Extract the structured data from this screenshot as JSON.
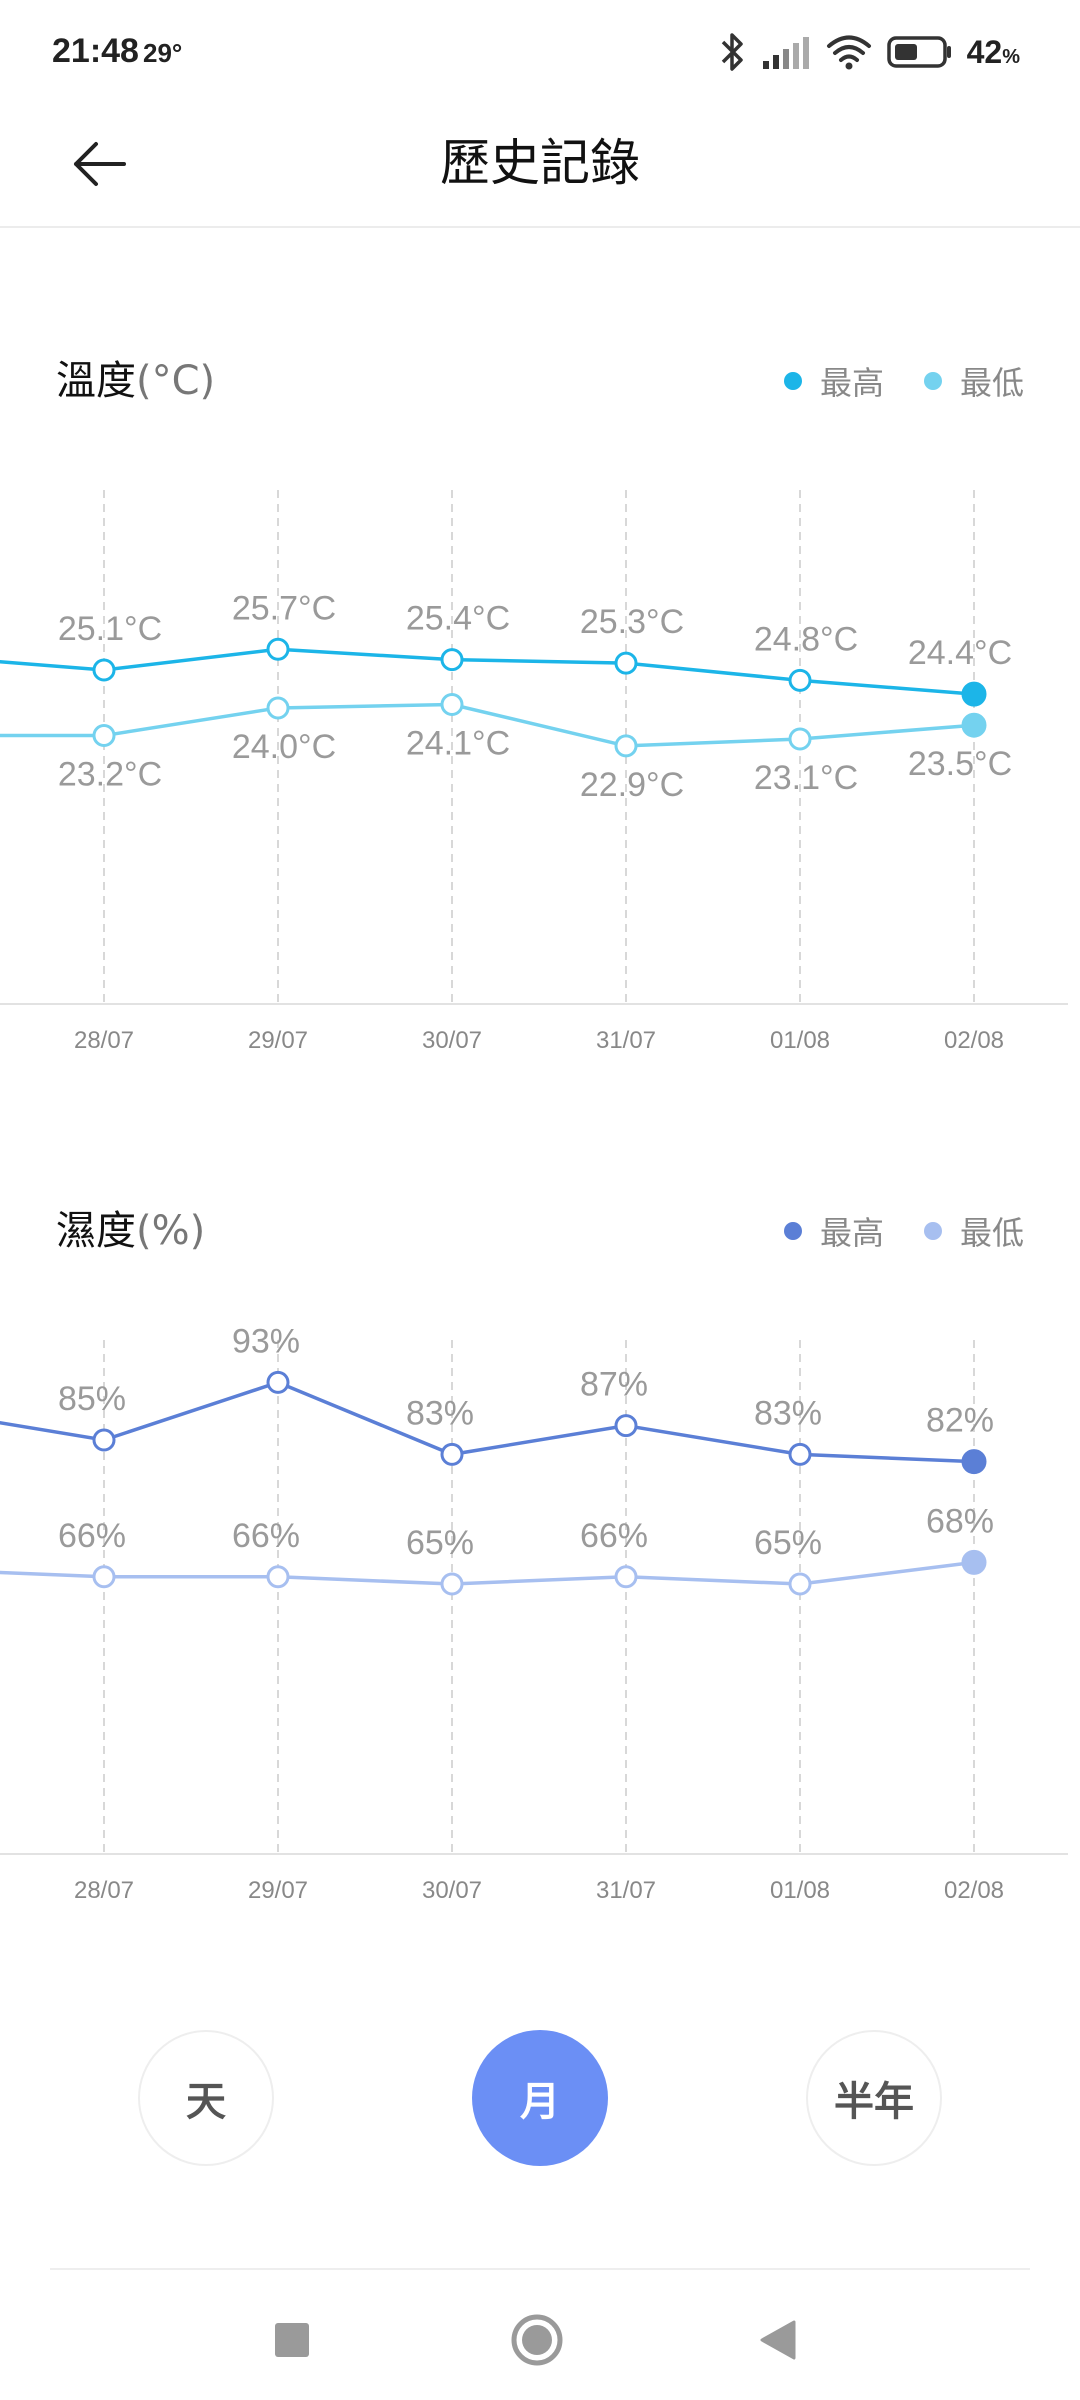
{
  "status_bar": {
    "time": "21:48",
    "temp": "29°",
    "battery": "42",
    "battery_unit": "%"
  },
  "header": {
    "title": "歷史記錄",
    "back_icon": "arrow-left-icon"
  },
  "temperature": {
    "title": "溫度",
    "unit": "(°C)",
    "legend": [
      {
        "label": "最高",
        "color": "#1cb5e8"
      },
      {
        "label": "最低",
        "color": "#74d2ef"
      }
    ]
  },
  "humidity": {
    "title": "濕度",
    "unit": "(%)",
    "legend": [
      {
        "label": "最高",
        "color": "#5b7fd6"
      },
      {
        "label": "最低",
        "color": "#a7bff0"
      }
    ]
  },
  "range_buttons": {
    "day": "天",
    "month": "月",
    "half_year": "半年",
    "active": "month"
  },
  "nav": {
    "recents_icon": "square-icon",
    "home_icon": "circle-icon",
    "back_icon": "triangle-back-icon"
  },
  "chart_data": [
    {
      "type": "line",
      "categories": [
        "28/07",
        "29/07",
        "30/07",
        "31/07",
        "01/08",
        "02/08"
      ],
      "series": [
        {
          "name": "最高",
          "values": [
            25.1,
            25.7,
            25.4,
            25.3,
            24.8,
            24.4
          ],
          "labels": [
            "25.1°C",
            "25.7°C",
            "25.4°C",
            "25.3°C",
            "24.8°C",
            "24.4°C"
          ],
          "color": "#1cb5e8"
        },
        {
          "name": "最低",
          "values": [
            23.2,
            24.0,
            24.1,
            22.9,
            23.1,
            23.5
          ],
          "labels": [
            "23.2°C",
            "24.0°C",
            "24.1°C",
            "22.9°C",
            "23.1°C",
            "23.5°C"
          ],
          "color": "#74d2ef"
        }
      ],
      "prev_values": [
        25.5,
        23.2
      ]
    },
    {
      "type": "line",
      "categories": [
        "28/07",
        "29/07",
        "30/07",
        "31/07",
        "01/08",
        "02/08"
      ],
      "series": [
        {
          "name": "最高",
          "values": [
            85,
            93,
            83,
            87,
            83,
            82
          ],
          "labels": [
            "85%",
            "93%",
            "83%",
            "87%",
            "83%",
            "82%"
          ],
          "color": "#5b7fd6"
        },
        {
          "name": "最低",
          "values": [
            66,
            66,
            65,
            66,
            65,
            68
          ],
          "labels": [
            "66%",
            "66%",
            "65%",
            "66%",
            "65%",
            "68%"
          ],
          "color": "#a7bff0"
        }
      ],
      "prev_values": [
        89,
        67
      ]
    }
  ]
}
